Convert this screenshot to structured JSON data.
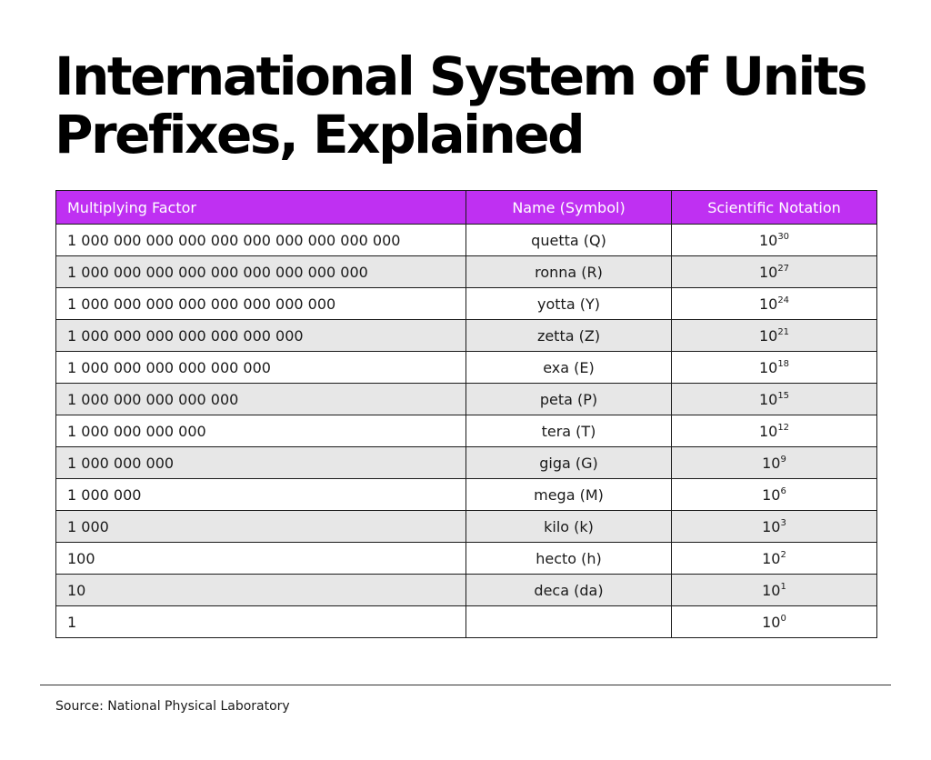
{
  "title": {
    "line1": "International System of Units",
    "line2": "Prefixes, Explained"
  },
  "table": {
    "header_color": "#bf30f2",
    "alt_row_color": "#e7e7e7",
    "headers": {
      "factor": "Multiplying Factor",
      "name": "Name (Symbol)",
      "sci": "Scientific Notation"
    },
    "rows": [
      {
        "factor": "1 000 000 000 000 000 000 000 000 000 000",
        "name": "quetta (Q)",
        "base": "10",
        "exp": "30"
      },
      {
        "factor": "1 000 000 000 000 000 000 000 000 000",
        "name": "ronna (R)",
        "base": "10",
        "exp": "27"
      },
      {
        "factor": "1 000 000 000 000 000 000 000 000",
        "name": "yotta (Y)",
        "base": "10",
        "exp": "24"
      },
      {
        "factor": "1 000 000 000 000 000 000 000",
        "name": "zetta (Z)",
        "base": "10",
        "exp": "21"
      },
      {
        "factor": "1 000 000 000 000 000 000",
        "name": "exa (E)",
        "base": "10",
        "exp": "18"
      },
      {
        "factor": "1 000 000 000 000 000",
        "name": "peta (P)",
        "base": "10",
        "exp": "15"
      },
      {
        "factor": "1 000 000 000 000",
        "name": "tera (T)",
        "base": "10",
        "exp": "12"
      },
      {
        "factor": "1 000 000 000",
        "name": "giga (G)",
        "base": "10",
        "exp": "9"
      },
      {
        "factor": "1 000 000",
        "name": "mega (M)",
        "base": "10",
        "exp": "6"
      },
      {
        "factor": "1 000",
        "name": "kilo (k)",
        "base": "10",
        "exp": "3"
      },
      {
        "factor": "100",
        "name": "hecto (h)",
        "base": "10",
        "exp": "2"
      },
      {
        "factor": "10",
        "name": "deca (da)",
        "base": "10",
        "exp": "1"
      },
      {
        "factor": "1",
        "name": "",
        "base": "10",
        "exp": "0"
      }
    ]
  },
  "source": "Source: National Physical Laboratory"
}
